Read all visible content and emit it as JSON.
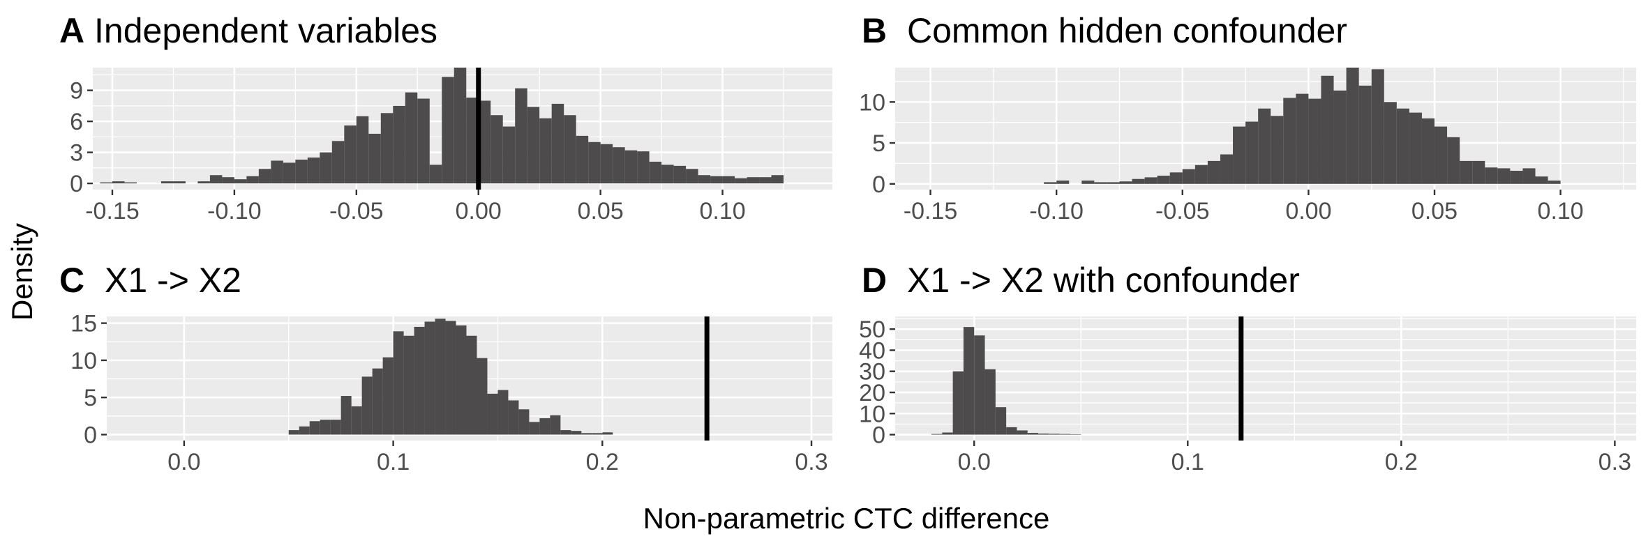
{
  "xlabel": "Non-parametric CTC difference",
  "ylabel": "Density",
  "chart_data": [
    {
      "type": "bar",
      "tag": "A",
      "title": "Independent variables",
      "xlim": [
        -0.158,
        0.145
      ],
      "ylim": [
        -0.6,
        11.2
      ],
      "x_ticks": [
        -0.15,
        -0.1,
        -0.05,
        0.0,
        0.05,
        0.1
      ],
      "x_tick_labels": [
        "-0.15",
        "-0.10",
        "-0.05",
        "0.00",
        "0.05",
        "0.10"
      ],
      "y_ticks": [
        0,
        3,
        6,
        9
      ],
      "y_tick_labels": [
        "0",
        "3",
        "6",
        "9"
      ],
      "grid": true,
      "bin_start": -0.155,
      "bin_width": 0.005,
      "values": [
        0.1,
        0.2,
        0.1,
        0.0,
        0.0,
        0.2,
        0.2,
        0.0,
        0.2,
        0.8,
        0.6,
        0.4,
        0.7,
        1.4,
        2.2,
        2.0,
        2.3,
        2.5,
        3.0,
        4.1,
        5.6,
        6.5,
        4.8,
        6.8,
        7.5,
        8.8,
        8.2,
        1.8,
        10.3,
        11.2,
        8.3,
        8.0,
        6.6,
        5.5,
        9.2,
        7.4,
        6.3,
        7.7,
        6.6,
        4.6,
        4.0,
        3.8,
        3.5,
        3.2,
        3.1,
        2.1,
        1.8,
        1.7,
        1.4,
        0.8,
        0.7,
        0.7,
        0.5,
        0.6,
        0.6,
        0.8
      ],
      "reference_line_x": 0.0
    },
    {
      "type": "bar",
      "tag": "B",
      "title": "Common hidden confounder",
      "xlim": [
        -0.164,
        0.13
      ],
      "ylim": [
        -0.7,
        14.2
      ],
      "x_ticks": [
        -0.15,
        -0.1,
        -0.05,
        0.0,
        0.05,
        0.1
      ],
      "x_tick_labels": [
        "-0.15",
        "-0.10",
        "-0.05",
        "0.00",
        "0.05",
        "0.10"
      ],
      "y_ticks": [
        0,
        5,
        10
      ],
      "y_tick_labels": [
        "0",
        "5",
        "10"
      ],
      "grid": true,
      "bin_start": -0.105,
      "bin_width": 0.005,
      "values": [
        0.2,
        0.4,
        0.0,
        0.4,
        0.2,
        0.2,
        0.3,
        0.6,
        0.8,
        1.0,
        1.4,
        1.8,
        2.3,
        2.8,
        3.6,
        7.0,
        7.6,
        9.2,
        8.3,
        10.5,
        11.0,
        10.4,
        13.2,
        11.4,
        14.2,
        12.0,
        14.0,
        10.0,
        9.2,
        8.7,
        8.0,
        7.0,
        5.7,
        2.8,
        2.8,
        2.0,
        1.9,
        1.6,
        1.9,
        0.9,
        0.4
      ]
    },
    {
      "type": "bar",
      "tag": "C",
      "title": "X1 -> X2",
      "xlim": [
        -0.037,
        0.31
      ],
      "ylim": [
        -0.8,
        15.9
      ],
      "x_ticks": [
        0.0,
        0.1,
        0.2,
        0.3
      ],
      "x_tick_labels": [
        "0.0",
        "0.1",
        "0.2",
        "0.3"
      ],
      "y_ticks": [
        0,
        5,
        10,
        15
      ],
      "y_tick_labels": [
        "0",
        "5",
        "10",
        "15"
      ],
      "grid": true,
      "bin_start": 0.05,
      "bin_width": 0.005,
      "values": [
        0.6,
        1.1,
        1.8,
        2.0,
        2.0,
        5.2,
        3.8,
        7.8,
        8.9,
        10.4,
        13.9,
        13.3,
        14.5,
        15.2,
        15.6,
        15.3,
        14.7,
        13.3,
        10.3,
        5.5,
        6.0,
        4.6,
        3.4,
        1.7,
        2.2,
        2.6,
        0.6,
        0.5,
        0.2,
        0.2,
        0.3
      ],
      "reference_line_x": 0.25
    },
    {
      "type": "bar",
      "tag": "D",
      "title": "X1 -> X2 with confounder",
      "xlim": [
        -0.037,
        0.31
      ],
      "ylim": [
        -2.8,
        56
      ],
      "x_ticks": [
        0.0,
        0.1,
        0.2,
        0.3
      ],
      "x_tick_labels": [
        "0.0",
        "0.1",
        "0.2",
        "0.3"
      ],
      "y_ticks": [
        0,
        10,
        20,
        30,
        40,
        50
      ],
      "y_tick_labels": [
        "0",
        "10",
        "20",
        "30",
        "40",
        "50"
      ],
      "grid": true,
      "bin_start": -0.02,
      "bin_width": 0.005,
      "values": [
        0.3,
        1.0,
        30.0,
        51.0,
        47.0,
        31.0,
        13.0,
        3.5,
        2.0,
        0.8,
        0.5,
        0.4,
        0.3,
        0.2
      ],
      "reference_line_x": 0.125
    }
  ]
}
